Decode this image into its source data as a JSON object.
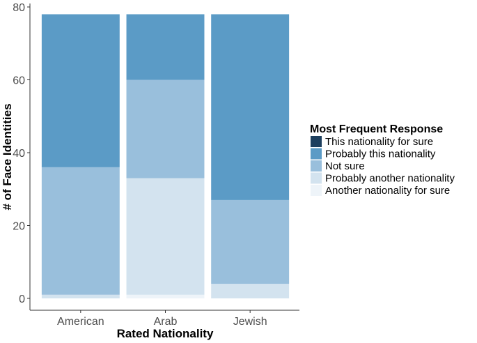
{
  "chart_data": {
    "type": "bar",
    "stacked": true,
    "categories": [
      "American",
      "Arab",
      "Jewish"
    ],
    "series": [
      {
        "name": "This nationality for sure",
        "color": "#1d3f5e",
        "values": [
          0,
          0,
          0
        ]
      },
      {
        "name": "Probably this nationality",
        "color": "#5b9bc6",
        "values": [
          42,
          18,
          51
        ]
      },
      {
        "name": "Not sure",
        "color": "#99bfdc",
        "values": [
          35,
          27,
          23
        ]
      },
      {
        "name": "Probably another nationality",
        "color": "#d3e3ef",
        "values": [
          1,
          32,
          4
        ]
      },
      {
        "name": "Another nationality for sure",
        "color": "#eef4f9",
        "values": [
          0,
          1,
          0
        ]
      }
    ],
    "stack_order_bottom_to_top": [
      "Another nationality for sure",
      "Probably another nationality",
      "Not sure",
      "Probably this nationality",
      "This nationality for sure"
    ],
    "title": "",
    "xlabel": "Rated Nationality",
    "ylabel": "# of Face Identities",
    "ylim": [
      0,
      80
    ],
    "yticks": [
      "0",
      "20",
      "40",
      "60",
      "80"
    ],
    "grid": false,
    "legend_title": "Most Frequent Response",
    "legend_position": "right"
  }
}
